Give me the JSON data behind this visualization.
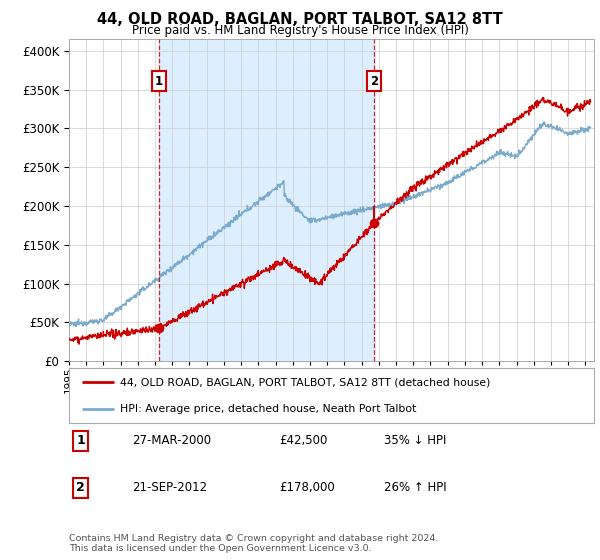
{
  "title": "44, OLD ROAD, BAGLAN, PORT TALBOT, SA12 8TT",
  "subtitle": "Price paid vs. HM Land Registry's House Price Index (HPI)",
  "yticks": [
    0,
    50000,
    100000,
    150000,
    200000,
    250000,
    300000,
    350000,
    400000
  ],
  "ylim": [
    0,
    415000
  ],
  "xlim_start": 1995.0,
  "xlim_end": 2025.5,
  "sale1": {
    "date_num": 2000.23,
    "price": 42500,
    "label": "1"
  },
  "sale2": {
    "date_num": 2012.72,
    "price": 178000,
    "label": "2"
  },
  "property_color": "#cc0000",
  "hpi_color": "#7aaacc",
  "fill_color": "#ddeeff",
  "annotation_box_color": "#cc0000",
  "legend_label_property": "44, OLD ROAD, BAGLAN, PORT TALBOT, SA12 8TT (detached house)",
  "legend_label_hpi": "HPI: Average price, detached house, Neath Port Talbot",
  "table_rows": [
    {
      "num": "1",
      "date": "27-MAR-2000",
      "price": "£42,500",
      "change": "35% ↓ HPI"
    },
    {
      "num": "2",
      "date": "21-SEP-2012",
      "price": "£178,000",
      "change": "26% ↑ HPI"
    }
  ],
  "footnote": "Contains HM Land Registry data © Crown copyright and database right 2024.\nThis data is licensed under the Open Government Licence v3.0.",
  "background_color": "#ffffff",
  "grid_color": "#cccccc"
}
